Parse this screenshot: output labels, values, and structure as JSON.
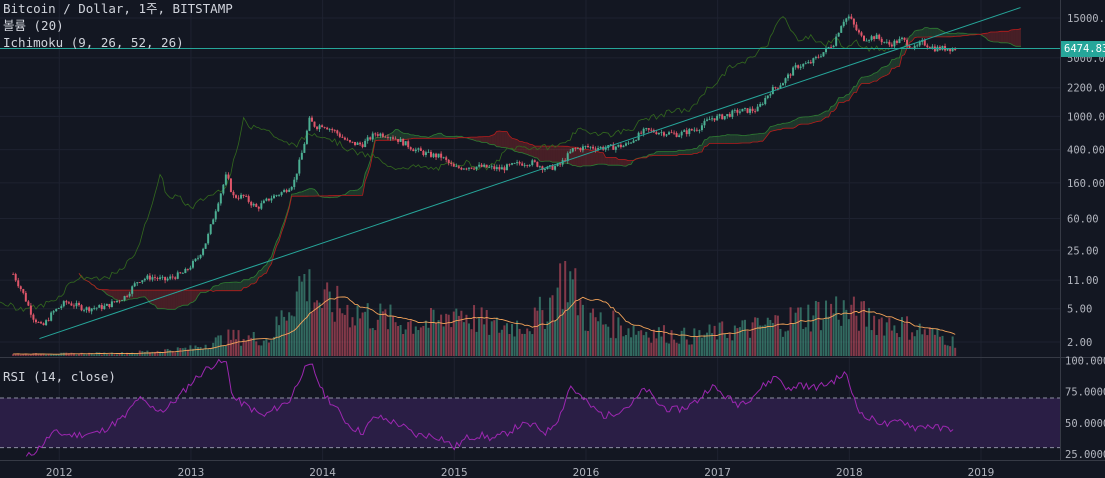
{
  "legend": {
    "title": "Bitcoin / Dollar, 1주, BITSTAMP",
    "volume": "볼륨 (20)",
    "ichimoku": "Ichimoku (9, 26, 52, 26)",
    "rsi": "RSI (14, close)"
  },
  "current_price_label": "6474.83",
  "colors": {
    "background": "#131722",
    "up": "#4caf93",
    "down": "#e0566a",
    "trendline": "#26a69a",
    "rsi_line": "#9c27b0",
    "rsi_band": "#2a1e45",
    "grid": "#1e2230",
    "axis_text": "#b2b5be"
  },
  "chart_data": [
    {
      "type": "line",
      "subtype": "candlestick",
      "scale": "log",
      "price_ticks": [
        15000,
        5000,
        2200,
        1000,
        400,
        160,
        60,
        25,
        11,
        5,
        2
      ],
      "price_tick_labels": [
        "15000.00",
        "5000.00",
        "2200.00",
        "1000.00",
        "400.00",
        "160.00",
        "60.00",
        "25.00",
        "11.00",
        "5.00",
        "2.00"
      ],
      "x_ticks": [
        "2012",
        "2013",
        "2014",
        "2015",
        "2016",
        "2017",
        "2018",
        "2019"
      ],
      "x_tick_dates": [
        2012.0,
        2013.0,
        2014.0,
        2015.0,
        2016.0,
        2017.0,
        2018.0,
        2019.0
      ],
      "price_path": [
        [
          2011.65,
          13
        ],
        [
          2011.72,
          8
        ],
        [
          2011.8,
          4
        ],
        [
          2011.87,
          3
        ],
        [
          2011.95,
          4.5
        ],
        [
          2012.05,
          6
        ],
        [
          2012.2,
          5
        ],
        [
          2012.35,
          5.3
        ],
        [
          2012.5,
          7
        ],
        [
          2012.6,
          11
        ],
        [
          2012.7,
          12
        ],
        [
          2012.8,
          11
        ],
        [
          2012.95,
          13.5
        ],
        [
          2013.05,
          20
        ],
        [
          2013.12,
          33
        ],
        [
          2013.2,
          90
        ],
        [
          2013.27,
          200
        ],
        [
          2013.32,
          110
        ],
        [
          2013.4,
          110
        ],
        [
          2013.5,
          80
        ],
        [
          2013.6,
          105
        ],
        [
          2013.7,
          125
        ],
        [
          2013.78,
          160
        ],
        [
          2013.85,
          400
        ],
        [
          2013.9,
          900
        ],
        [
          2013.95,
          750
        ],
        [
          2014.0,
          800
        ],
        [
          2014.1,
          650
        ],
        [
          2014.2,
          480
        ],
        [
          2014.3,
          460
        ],
        [
          2014.4,
          620
        ],
        [
          2014.5,
          600
        ],
        [
          2014.6,
          500
        ],
        [
          2014.7,
          400
        ],
        [
          2014.8,
          350
        ],
        [
          2014.9,
          330
        ],
        [
          2015.0,
          240
        ],
        [
          2015.1,
          250
        ],
        [
          2015.2,
          250
        ],
        [
          2015.35,
          235
        ],
        [
          2015.5,
          275
        ],
        [
          2015.6,
          280
        ],
        [
          2015.7,
          235
        ],
        [
          2015.8,
          260
        ],
        [
          2015.9,
          400
        ],
        [
          2016.0,
          430
        ],
        [
          2016.15,
          420
        ],
        [
          2016.3,
          450
        ],
        [
          2016.45,
          680
        ],
        [
          2016.55,
          650
        ],
        [
          2016.7,
          610
        ],
        [
          2016.85,
          720
        ],
        [
          2016.95,
          950
        ],
        [
          2017.05,
          1000
        ],
        [
          2017.15,
          1150
        ],
        [
          2017.3,
          1200
        ],
        [
          2017.4,
          2000
        ],
        [
          2017.5,
          2600
        ],
        [
          2017.6,
          4000
        ],
        [
          2017.7,
          4300
        ],
        [
          2017.8,
          5800
        ],
        [
          2017.88,
          7500
        ],
        [
          2017.95,
          14000
        ],
        [
          2018.0,
          15500
        ],
        [
          2018.05,
          11000
        ],
        [
          2018.1,
          8500
        ],
        [
          2018.2,
          9000
        ],
        [
          2018.3,
          7200
        ],
        [
          2018.4,
          8300
        ],
        [
          2018.5,
          6400
        ],
        [
          2018.55,
          7700
        ],
        [
          2018.65,
          6500
        ],
        [
          2018.75,
          6500
        ],
        [
          2018.8,
          6475
        ]
      ],
      "trendline": {
        "from": [
          2011.85,
          2.2
        ],
        "to": [
          2019.3,
          20000
        ]
      },
      "horizontal_level": 6474.83
    },
    {
      "type": "bar",
      "name": "볼륨 (20)",
      "relative_volume_path": [
        [
          2011.65,
          0.02
        ],
        [
          2012.5,
          0.03
        ],
        [
          2013.0,
          0.08
        ],
        [
          2013.3,
          0.2
        ],
        [
          2013.6,
          0.18
        ],
        [
          2013.85,
          0.8
        ],
        [
          2014.0,
          0.55
        ],
        [
          2014.3,
          0.45
        ],
        [
          2014.6,
          0.35
        ],
        [
          2014.9,
          0.35
        ],
        [
          2015.0,
          0.5
        ],
        [
          2015.3,
          0.3
        ],
        [
          2015.6,
          0.35
        ],
        [
          2015.75,
          0.6
        ],
        [
          2015.85,
          0.9
        ],
        [
          2016.0,
          0.4
        ],
        [
          2016.3,
          0.3
        ],
        [
          2016.5,
          0.25
        ],
        [
          2016.8,
          0.2
        ],
        [
          2017.0,
          0.25
        ],
        [
          2017.3,
          0.3
        ],
        [
          2017.6,
          0.4
        ],
        [
          2017.9,
          0.5
        ],
        [
          2018.0,
          0.45
        ],
        [
          2018.3,
          0.35
        ],
        [
          2018.6,
          0.25
        ],
        [
          2018.8,
          0.15
        ]
      ]
    },
    {
      "type": "line",
      "name": "RSI (14, close)",
      "ylim": [
        20,
        103
      ],
      "y_ticks": [
        100,
        75,
        50,
        25
      ],
      "y_tick_labels": [
        "100.0000",
        "75.0000",
        "50.0000",
        "25.0000"
      ],
      "band": [
        30,
        70
      ],
      "rsi_path": [
        [
          2011.75,
          22
        ],
        [
          2011.85,
          30
        ],
        [
          2011.95,
          42
        ],
        [
          2012.1,
          40
        ],
        [
          2012.3,
          42
        ],
        [
          2012.5,
          55
        ],
        [
          2012.6,
          70
        ],
        [
          2012.7,
          62
        ],
        [
          2012.8,
          60
        ],
        [
          2012.9,
          70
        ],
        [
          2013.0,
          82
        ],
        [
          2013.1,
          92
        ],
        [
          2013.2,
          99
        ],
        [
          2013.27,
          98
        ],
        [
          2013.32,
          70
        ],
        [
          2013.45,
          62
        ],
        [
          2013.55,
          55
        ],
        [
          2013.65,
          62
        ],
        [
          2013.75,
          68
        ],
        [
          2013.85,
          92
        ],
        [
          2013.92,
          96
        ],
        [
          2014.0,
          75
        ],
        [
          2014.1,
          62
        ],
        [
          2014.2,
          48
        ],
        [
          2014.3,
          42
        ],
        [
          2014.4,
          55
        ],
        [
          2014.5,
          52
        ],
        [
          2014.6,
          48
        ],
        [
          2014.7,
          40
        ],
        [
          2014.8,
          40
        ],
        [
          2014.9,
          38
        ],
        [
          2015.0,
          30
        ],
        [
          2015.1,
          38
        ],
        [
          2015.2,
          40
        ],
        [
          2015.3,
          37
        ],
        [
          2015.4,
          42
        ],
        [
          2015.5,
          48
        ],
        [
          2015.6,
          48
        ],
        [
          2015.7,
          42
        ],
        [
          2015.8,
          55
        ],
        [
          2015.88,
          80
        ],
        [
          2015.95,
          72
        ],
        [
          2016.05,
          62
        ],
        [
          2016.15,
          55
        ],
        [
          2016.25,
          60
        ],
        [
          2016.35,
          65
        ],
        [
          2016.45,
          78
        ],
        [
          2016.55,
          65
        ],
        [
          2016.65,
          60
        ],
        [
          2016.75,
          62
        ],
        [
          2016.85,
          68
        ],
        [
          2016.95,
          80
        ],
        [
          2017.05,
          72
        ],
        [
          2017.15,
          65
        ],
        [
          2017.25,
          70
        ],
        [
          2017.35,
          80
        ],
        [
          2017.45,
          88
        ],
        [
          2017.55,
          75
        ],
        [
          2017.62,
          82
        ],
        [
          2017.7,
          78
        ],
        [
          2017.8,
          80
        ],
        [
          2017.9,
          85
        ],
        [
          2017.97,
          90
        ],
        [
          2018.03,
          72
        ],
        [
          2018.1,
          55
        ],
        [
          2018.2,
          52
        ],
        [
          2018.3,
          48
        ],
        [
          2018.4,
          52
        ],
        [
          2018.5,
          46
        ],
        [
          2018.6,
          48
        ],
        [
          2018.7,
          45
        ],
        [
          2018.8,
          46
        ]
      ]
    }
  ]
}
